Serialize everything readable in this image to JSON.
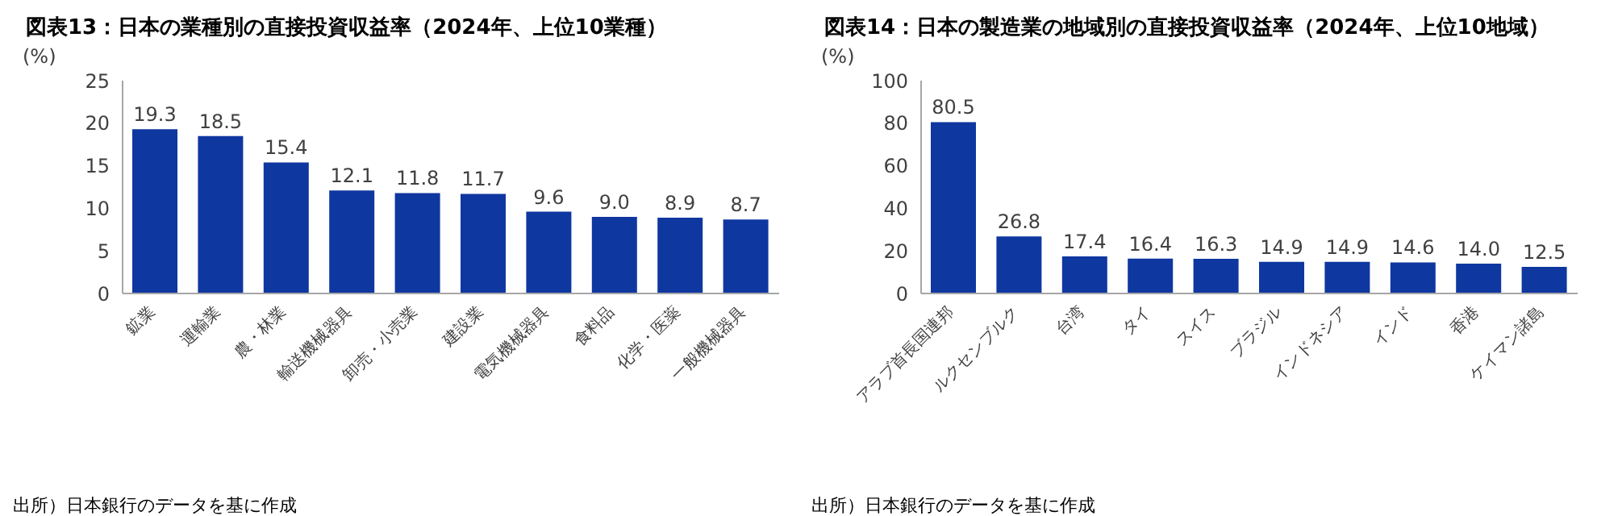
{
  "chart_data": [
    {
      "type": "bar",
      "title": "図表13：日本の業種別の直接投資収益率（2024年、上位10業種）",
      "ylabel": "(%)",
      "categories": [
        "鉱業",
        "運輸業",
        "農・林業",
        "輸送機械器具",
        "卸売・小売業",
        "建設業",
        "電気機械器具",
        "食料品",
        "化学・医薬",
        "一般機械器具"
      ],
      "values": [
        19.3,
        18.5,
        15.4,
        12.1,
        11.8,
        11.7,
        9.6,
        9.0,
        8.9,
        8.7
      ],
      "value_labels": [
        "19.3",
        "18.5",
        "15.4",
        "12.1",
        "11.8",
        "11.7",
        "9.6",
        "9.0",
        "8.9",
        "8.7"
      ],
      "color": "#0f37a0",
      "ylim": [
        0,
        25
      ],
      "yticks": [
        0,
        5,
        10,
        15,
        20,
        25
      ],
      "grid": false,
      "legend": false,
      "annotations": [
        "出所）日本銀行のデータを基に作成"
      ]
    },
    {
      "type": "bar",
      "title": "図表14：日本の製造業の地域別の直接投資収益率（2024年、上位10地域）",
      "ylabel": "(%)",
      "categories": [
        "アラブ首長国連邦",
        "ルクセンブルク",
        "台湾",
        "タイ",
        "スイス",
        "ブラジル",
        "インドネシア",
        "インド",
        "香港",
        "ケイマン諸島"
      ],
      "values": [
        80.5,
        26.8,
        17.4,
        16.4,
        16.3,
        14.9,
        14.9,
        14.6,
        14.0,
        12.5
      ],
      "value_labels": [
        "80.5",
        "26.8",
        "17.4",
        "16.4",
        "16.3",
        "14.9",
        "14.9",
        "14.6",
        "14.0",
        "12.5"
      ],
      "color": "#0f37a0",
      "ylim": [
        0,
        100
      ],
      "yticks": [
        0,
        20,
        40,
        60,
        80,
        100
      ],
      "grid": false,
      "legend": false,
      "annotations": [
        "出所）日本銀行のデータを基に作成"
      ]
    }
  ]
}
